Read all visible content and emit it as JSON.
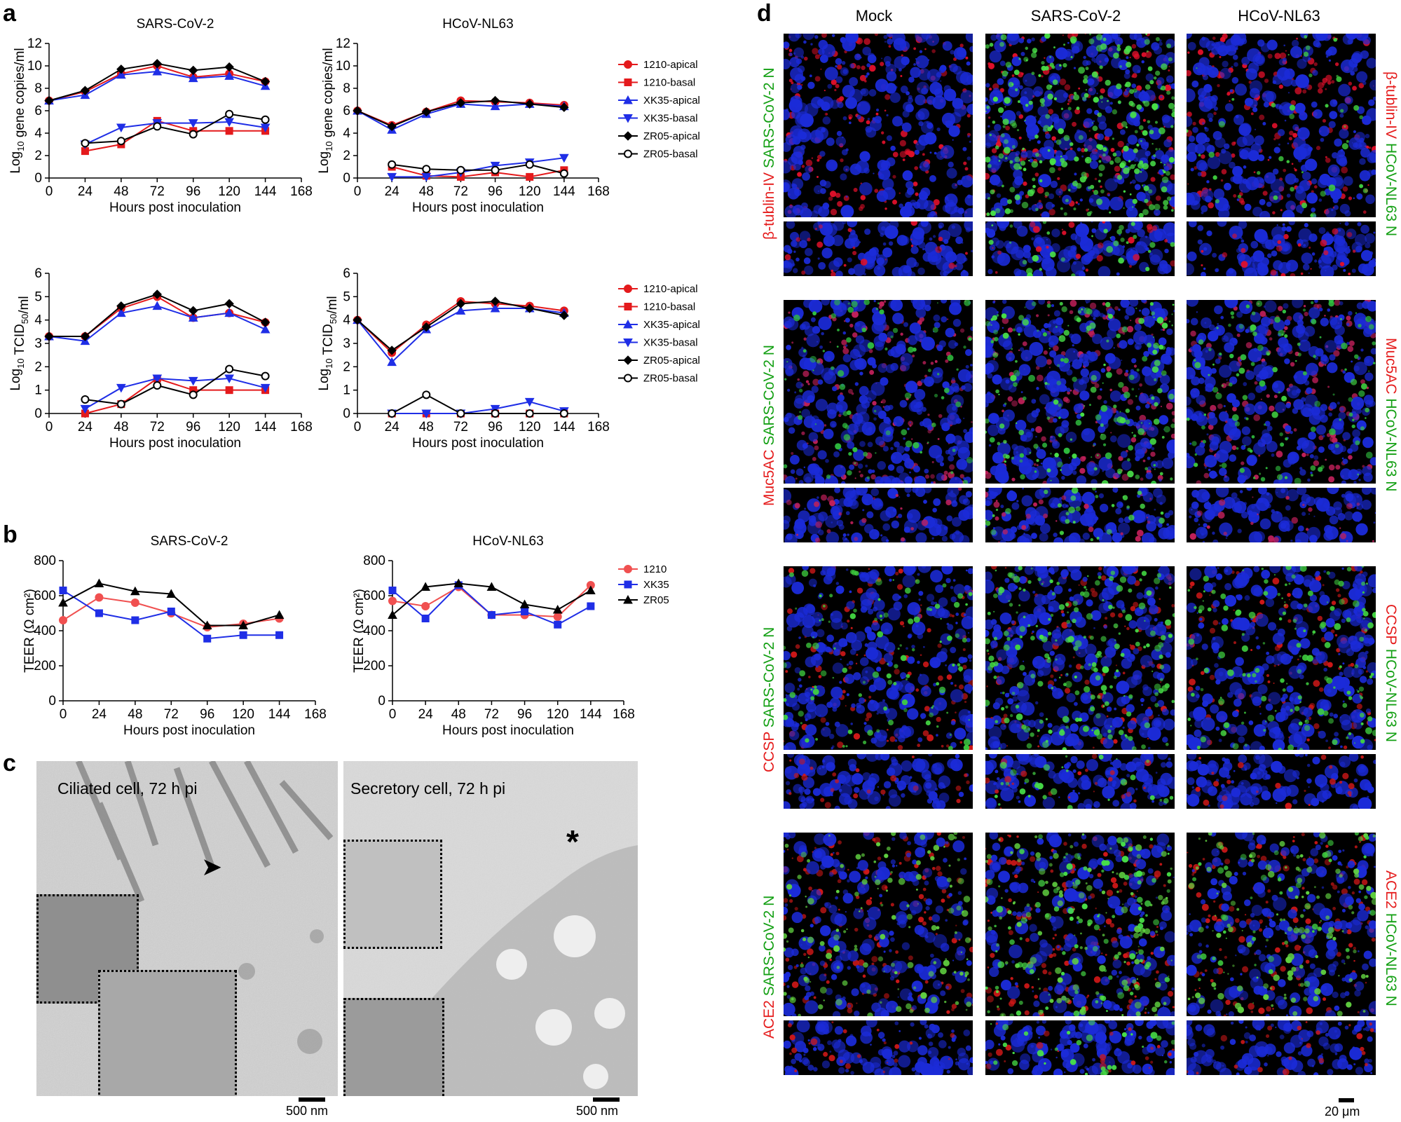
{
  "panels": {
    "a": "a",
    "b": "b",
    "c": "c",
    "d": "d"
  },
  "charts": {
    "a_gene_sars": {
      "title": "SARS-CoV-2",
      "ylabel_main": "Log",
      "ylabel_sub": "10",
      "ylabel_rest": " gene copies/ml",
      "xlabel": "Hours post inoculation",
      "ylim": [
        0,
        12
      ],
      "yticks": [
        "0",
        "2",
        "4",
        "6",
        "8",
        "10",
        "12"
      ],
      "xticks": [
        "0",
        "24",
        "48",
        "72",
        "96",
        "120",
        "144",
        "168"
      ]
    },
    "a_gene_nl63": {
      "title": "HCoV-NL63",
      "ylabel_main": "Log",
      "ylabel_sub": "10",
      "ylabel_rest": " gene copies/ml",
      "xlabel": "Hours post inoculation",
      "ylim": [
        0,
        12
      ],
      "yticks": [
        "0",
        "2",
        "4",
        "6",
        "8",
        "10",
        "12"
      ],
      "xticks": [
        "0",
        "24",
        "48",
        "72",
        "96",
        "120",
        "144",
        "168"
      ]
    },
    "a_tcid_sars": {
      "ylabel_main": "Log",
      "ylabel_sub": "10",
      "ylabel_rest": " TCID",
      "ylabel_sub2": "50",
      "ylabel_end": "/ml",
      "xlabel": "Hours post inoculation",
      "ylim": [
        0,
        6
      ],
      "yticks": [
        "0",
        "1",
        "2",
        "3",
        "4",
        "5",
        "6"
      ],
      "xticks": [
        "0",
        "24",
        "48",
        "72",
        "96",
        "120",
        "144",
        "168"
      ]
    },
    "a_tcid_nl63": {
      "ylabel_main": "Log",
      "ylabel_sub": "10",
      "ylabel_rest": " TCID",
      "ylabel_sub2": "50",
      "ylabel_end": "/ml",
      "xlabel": "Hours post inoculation",
      "ylim": [
        0,
        6
      ],
      "yticks": [
        "0",
        "1",
        "2",
        "3",
        "4",
        "5",
        "6"
      ],
      "xticks": [
        "0",
        "24",
        "48",
        "72",
        "96",
        "120",
        "144",
        "168"
      ]
    },
    "b_teer_sars": {
      "title": "SARS-CoV-2",
      "ylabel": "TEER (Ω cm²)",
      "xlabel": "Hours post inoculation",
      "ylim": [
        0,
        800
      ],
      "yticks": [
        "0",
        "200",
        "400",
        "600",
        "800"
      ],
      "xticks": [
        "0",
        "24",
        "48",
        "72",
        "96",
        "120",
        "144",
        "168"
      ]
    },
    "b_teer_nl63": {
      "title": "HCoV-NL63",
      "ylabel": "TEER (Ω cm²)",
      "xlabel": "Hours post inoculation",
      "ylim": [
        0,
        800
      ],
      "yticks": [
        "0",
        "200",
        "400",
        "600",
        "800"
      ],
      "xticks": [
        "0",
        "24",
        "48",
        "72",
        "96",
        "120",
        "144",
        "168"
      ]
    }
  },
  "legend_a": [
    "1210-apical",
    "1210-basal",
    "XK35-apical",
    "XK35-basal",
    "ZR05-apical",
    "ZR05-basal"
  ],
  "legend_b": [
    "1210",
    "XK35",
    "ZR05"
  ],
  "colors": {
    "red": "#e41a1c",
    "blue": "#1f2ee6",
    "black": "#000000",
    "lightred": "#f05050"
  },
  "chart_data": [
    {
      "type": "line",
      "id": "a_gene_sars",
      "x": [
        0,
        24,
        48,
        72,
        96,
        120,
        144
      ],
      "series": [
        {
          "name": "1210-apical",
          "values": [
            6.9,
            7.7,
            9.3,
            10.0,
            9.0,
            9.3,
            8.6
          ]
        },
        {
          "name": "1210-basal",
          "values": [
            null,
            2.4,
            3.0,
            5.1,
            4.2,
            4.2,
            4.2
          ]
        },
        {
          "name": "XK35-apical",
          "values": [
            6.9,
            7.4,
            9.2,
            9.5,
            8.9,
            9.1,
            8.2
          ]
        },
        {
          "name": "XK35-basal",
          "values": [
            null,
            3.0,
            4.5,
            4.9,
            4.9,
            5.0,
            4.5
          ]
        },
        {
          "name": "ZR05-apical",
          "values": [
            6.9,
            7.8,
            9.7,
            10.2,
            9.6,
            9.9,
            8.6
          ]
        },
        {
          "name": "ZR05-basal",
          "values": [
            null,
            3.1,
            3.3,
            4.6,
            3.9,
            5.7,
            5.2
          ]
        }
      ]
    },
    {
      "type": "line",
      "id": "a_gene_nl63",
      "x": [
        0,
        24,
        48,
        72,
        96,
        120,
        144
      ],
      "series": [
        {
          "name": "1210-apical",
          "values": [
            6.0,
            4.7,
            5.9,
            6.9,
            6.8,
            6.7,
            6.5
          ]
        },
        {
          "name": "1210-basal",
          "values": [
            null,
            1.0,
            0.2,
            0.1,
            0.5,
            0.1,
            0.7
          ]
        },
        {
          "name": "XK35-apical",
          "values": [
            6.0,
            4.3,
            5.7,
            6.6,
            6.4,
            6.6,
            6.4
          ]
        },
        {
          "name": "XK35-basal",
          "values": [
            null,
            0.1,
            0.1,
            0.5,
            1.1,
            1.4,
            1.8
          ]
        },
        {
          "name": "ZR05-apical",
          "values": [
            6.0,
            4.6,
            5.9,
            6.7,
            6.9,
            6.6,
            6.3
          ]
        },
        {
          "name": "ZR05-basal",
          "values": [
            null,
            1.2,
            0.8,
            0.7,
            0.7,
            1.2,
            0.4
          ]
        }
      ]
    },
    {
      "type": "line",
      "id": "a_tcid_sars",
      "x": [
        0,
        24,
        48,
        72,
        96,
        120,
        144
      ],
      "series": [
        {
          "name": "1210-apical",
          "values": [
            3.3,
            3.3,
            4.5,
            5.0,
            4.1,
            4.3,
            3.9
          ]
        },
        {
          "name": "1210-basal",
          "values": [
            null,
            0.0,
            0.4,
            1.5,
            1.0,
            1.0,
            1.0
          ]
        },
        {
          "name": "XK35-apical",
          "values": [
            3.3,
            3.1,
            4.3,
            4.6,
            4.1,
            4.3,
            3.6
          ]
        },
        {
          "name": "XK35-basal",
          "values": [
            null,
            0.2,
            1.1,
            1.5,
            1.4,
            1.5,
            1.1
          ]
        },
        {
          "name": "ZR05-apical",
          "values": [
            3.3,
            3.3,
            4.6,
            5.1,
            4.4,
            4.7,
            3.9
          ]
        },
        {
          "name": "ZR05-basal",
          "values": [
            null,
            0.6,
            0.4,
            1.2,
            0.8,
            1.9,
            1.6
          ]
        }
      ]
    },
    {
      "type": "line",
      "id": "a_tcid_nl63",
      "x": [
        0,
        24,
        48,
        72,
        96,
        120,
        144
      ],
      "series": [
        {
          "name": "1210-apical",
          "values": [
            4.0,
            2.6,
            3.8,
            4.8,
            4.7,
            4.6,
            4.4
          ]
        },
        {
          "name": "1210-basal",
          "values": [
            null,
            0,
            0,
            0,
            0,
            0,
            0
          ]
        },
        {
          "name": "XK35-apical",
          "values": [
            4.0,
            2.2,
            3.6,
            4.4,
            4.5,
            4.5,
            4.3
          ]
        },
        {
          "name": "XK35-basal",
          "values": [
            null,
            0,
            0,
            0,
            0.2,
            0.5,
            0.1
          ]
        },
        {
          "name": "ZR05-apical",
          "values": [
            4.0,
            2.7,
            3.7,
            4.7,
            4.8,
            4.5,
            4.2
          ]
        },
        {
          "name": "ZR05-basal",
          "values": [
            null,
            0,
            0.8,
            0,
            0,
            0,
            0
          ]
        }
      ]
    },
    {
      "type": "line",
      "id": "b_teer_sars",
      "x": [
        0,
        24,
        48,
        72,
        96,
        120,
        144
      ],
      "series": [
        {
          "name": "1210",
          "values": [
            460,
            590,
            560,
            500,
            420,
            440,
            470
          ]
        },
        {
          "name": "XK35",
          "values": [
            630,
            500,
            460,
            510,
            355,
            375,
            375
          ]
        },
        {
          "name": "ZR05",
          "values": [
            560,
            670,
            625,
            610,
            430,
            430,
            490
          ]
        }
      ]
    },
    {
      "type": "line",
      "id": "b_teer_nl63",
      "x": [
        0,
        24,
        48,
        72,
        96,
        120,
        144
      ],
      "series": [
        {
          "name": "1210",
          "values": [
            570,
            540,
            650,
            490,
            490,
            480,
            660
          ]
        },
        {
          "name": "XK35",
          "values": [
            630,
            470,
            660,
            490,
            510,
            435,
            540
          ]
        },
        {
          "name": "ZR05",
          "values": [
            490,
            650,
            670,
            650,
            550,
            520,
            630
          ]
        }
      ]
    }
  ],
  "em": {
    "left_label": "Ciliated cell, 72 h pi",
    "right_label": "Secretory cell, 72 h pi",
    "scale": "500 nm"
  },
  "if": {
    "columns": [
      "Mock",
      "SARS-CoV-2",
      "HCoV-NL63"
    ],
    "rows": [
      {
        "left_marker": "β-tublin-IV",
        "right_marker": "β-tublin-IV"
      },
      {
        "left_marker": "Muc5AC",
        "right_marker": "Muc5AC"
      },
      {
        "left_marker": "CCSP",
        "right_marker": "CCSP"
      },
      {
        "left_marker": "ACE2",
        "right_marker": "ACE2"
      }
    ],
    "left_virus": "SARS-CoV-2 N",
    "right_virus": "HCoV-NL63 N",
    "scale": "20 μm"
  }
}
